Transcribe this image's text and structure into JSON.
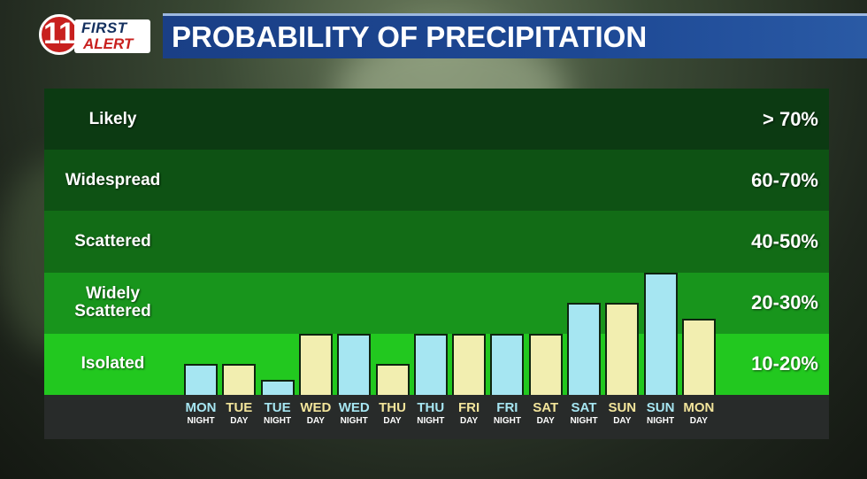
{
  "header": {
    "logo_number": "11",
    "logo_line1": "FIRST",
    "logo_line2": "ALERT",
    "title": "PROBABILITY OF PRECIPITATION"
  },
  "colors": {
    "night_bar": "#a6e6f2",
    "day_bar": "#f2eeb0",
    "night_text": "#a6e6f2",
    "day_text": "#f2e49a",
    "bands": [
      "#0c3a12",
      "#0e5214",
      "#126c16",
      "#18951c",
      "#22c81f"
    ]
  },
  "chart_data": {
    "type": "bar",
    "title": "PROBABILITY OF PRECIPITATION",
    "y_categories": [
      {
        "label": "Likely",
        "range": "> 70%"
      },
      {
        "label": "Widespread",
        "range": "60-70%"
      },
      {
        "label": "Scattered",
        "range": "40-50%"
      },
      {
        "label": "Widely Scattered",
        "range": "20-30%"
      },
      {
        "label": "Isolated",
        "range": "10-20%"
      }
    ],
    "ylim": [
      0,
      100
    ],
    "categories": [
      {
        "day": "MON",
        "part": "NIGHT"
      },
      {
        "day": "TUE",
        "part": "DAY"
      },
      {
        "day": "TUE",
        "part": "NIGHT"
      },
      {
        "day": "WED",
        "part": "DAY"
      },
      {
        "day": "WED",
        "part": "NIGHT"
      },
      {
        "day": "THU",
        "part": "DAY"
      },
      {
        "day": "THU",
        "part": "NIGHT"
      },
      {
        "day": "FRI",
        "part": "DAY"
      },
      {
        "day": "FRI",
        "part": "NIGHT"
      },
      {
        "day": "SAT",
        "part": "DAY"
      },
      {
        "day": "SAT",
        "part": "NIGHT"
      },
      {
        "day": "SUN",
        "part": "DAY"
      },
      {
        "day": "SUN",
        "part": "NIGHT"
      },
      {
        "day": "MON",
        "part": "DAY"
      }
    ],
    "values": [
      10,
      10,
      5,
      20,
      20,
      10,
      20,
      20,
      20,
      20,
      30,
      30,
      40,
      25
    ]
  }
}
